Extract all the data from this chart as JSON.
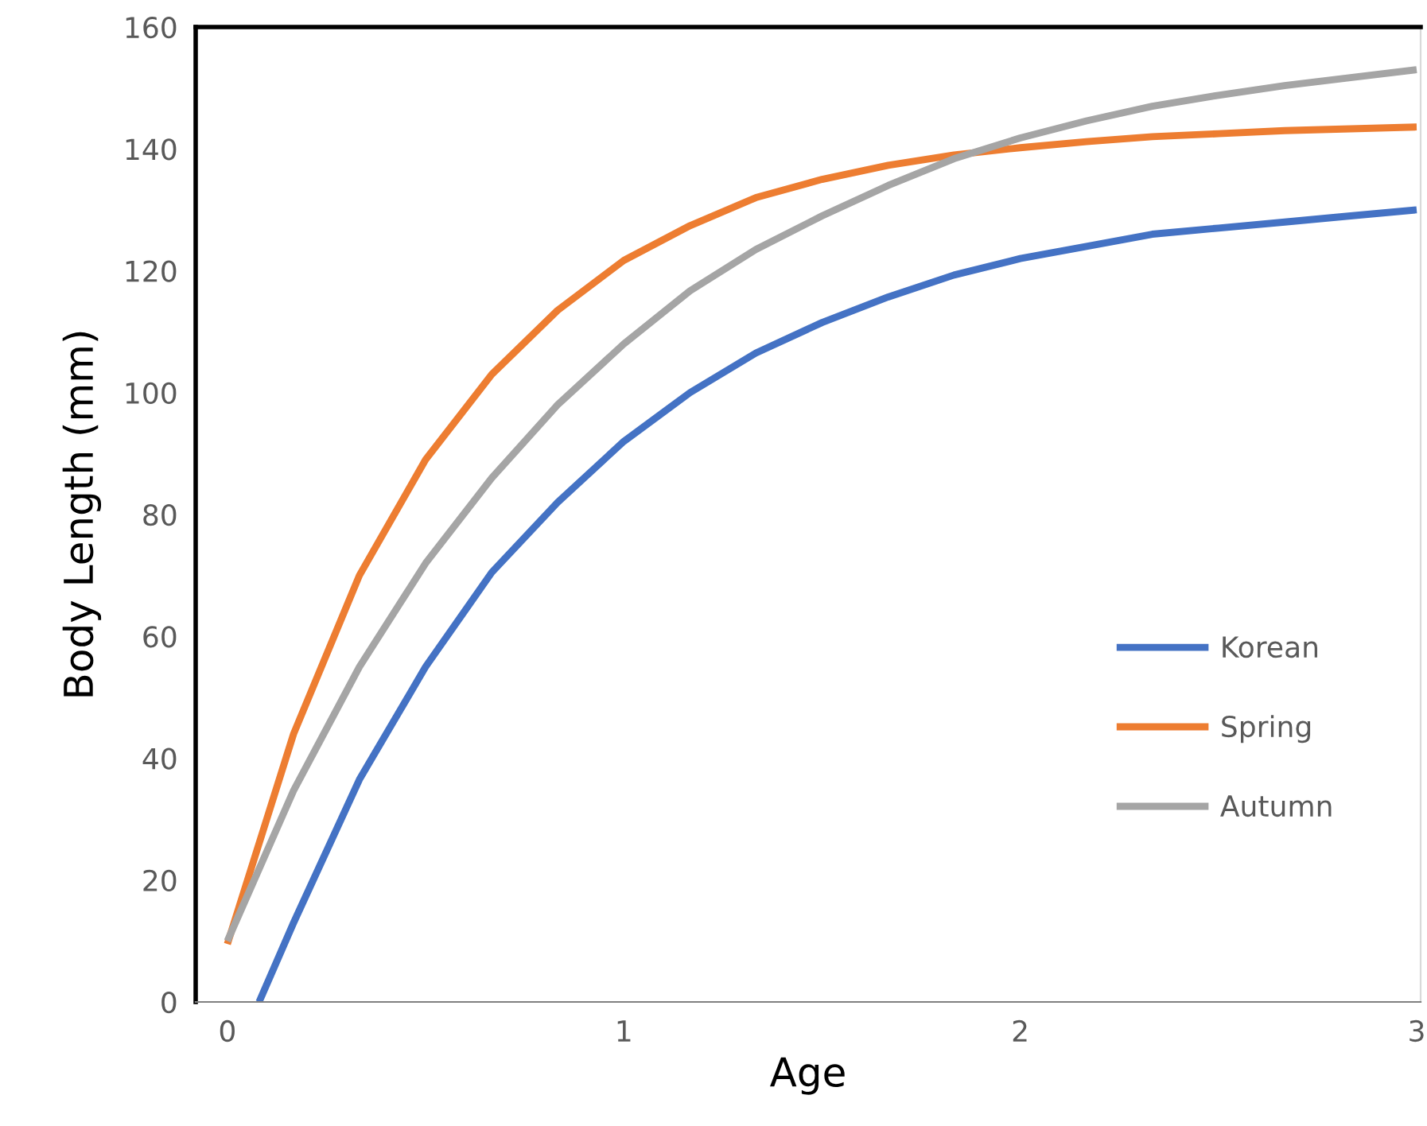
{
  "chart_data": {
    "type": "line",
    "xlabel": "Age",
    "ylabel": "Body Length (mm)",
    "xlim": [
      -0.08,
      3.01
    ],
    "xticks": [
      0,
      1,
      2,
      3
    ],
    "ylim": [
      0,
      160
    ],
    "yticks": [
      0,
      20,
      40,
      60,
      80,
      100,
      120,
      140,
      160
    ],
    "grid": false,
    "legend": "right",
    "marker": "none",
    "line_style": "solid",
    "series": [
      {
        "name": "Korean",
        "color": "#4472c4",
        "x": [
          0.08,
          0.167,
          0.333,
          0.5,
          0.667,
          0.833,
          1.0,
          1.167,
          1.333,
          1.5,
          1.667,
          1.833,
          2.0,
          2.167,
          2.333,
          2.5,
          2.667,
          2.833,
          3.0
        ],
        "values": [
          0,
          13,
          36.5,
          55,
          70.5,
          82,
          92,
          100,
          106.5,
          111.5,
          115.7,
          119.3,
          122,
          124,
          126,
          127,
          128,
          129,
          130
        ]
      },
      {
        "name": "Spring",
        "color": "#ed7d31",
        "x": [
          0,
          0.167,
          0.333,
          0.5,
          0.667,
          0.833,
          1.0,
          1.167,
          1.333,
          1.5,
          1.667,
          1.833,
          2.0,
          2.167,
          2.333,
          2.5,
          2.667,
          2.833,
          3.0
        ],
        "values": [
          9.5,
          44,
          70,
          89,
          103,
          113.5,
          121.7,
          127.4,
          132,
          135,
          137.3,
          139,
          140.2,
          141.2,
          142,
          142.5,
          143,
          143.3,
          143.6
        ]
      },
      {
        "name": "Autumn",
        "color": "#a5a5a5",
        "x": [
          0,
          0.167,
          0.333,
          0.5,
          0.667,
          0.833,
          1.0,
          1.167,
          1.333,
          1.5,
          1.667,
          1.833,
          2.0,
          2.167,
          2.333,
          2.5,
          2.667,
          2.833,
          3.0
        ],
        "values": [
          10,
          34.7,
          55,
          72,
          86,
          98,
          108,
          116.7,
          123.5,
          129,
          134,
          138.4,
          141.8,
          144.6,
          147,
          148.8,
          150.4,
          151.7,
          153
        ]
      }
    ]
  }
}
